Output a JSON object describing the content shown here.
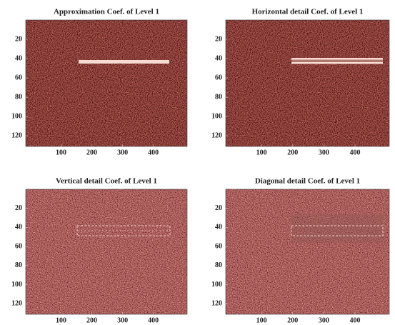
{
  "chart_data": [
    {
      "type": "image",
      "title": "Approximation Coef. of Level 1",
      "xlim": [
        -15,
        510
      ],
      "ylim": [
        0,
        131
      ],
      "xticks": [
        100,
        200,
        300,
        400
      ],
      "yticks": [
        20,
        40,
        60,
        80,
        100,
        120
      ]
    },
    {
      "type": "image",
      "title": "Horizontal detail Coef. of Level 1",
      "xlim": [
        -15,
        510
      ],
      "ylim": [
        0,
        131
      ],
      "xticks": [
        100,
        200,
        300,
        400
      ],
      "yticks": [
        20,
        40,
        60,
        80,
        100,
        120
      ]
    },
    {
      "type": "image",
      "title": "Vertical detail Coef. of Level 1",
      "xlim": [
        -15,
        510
      ],
      "ylim": [
        0,
        131
      ],
      "xticks": [
        100,
        200,
        300,
        400
      ],
      "yticks": [
        20,
        40,
        60,
        80,
        100,
        120
      ]
    },
    {
      "type": "image",
      "title": "Diagonal detail Coef. of Level 1",
      "xlim": [
        -15,
        510
      ],
      "ylim": [
        0,
        131
      ],
      "xticks": [
        100,
        200,
        300,
        400
      ],
      "yticks": [
        20,
        40,
        60,
        80,
        100,
        120
      ]
    }
  ]
}
